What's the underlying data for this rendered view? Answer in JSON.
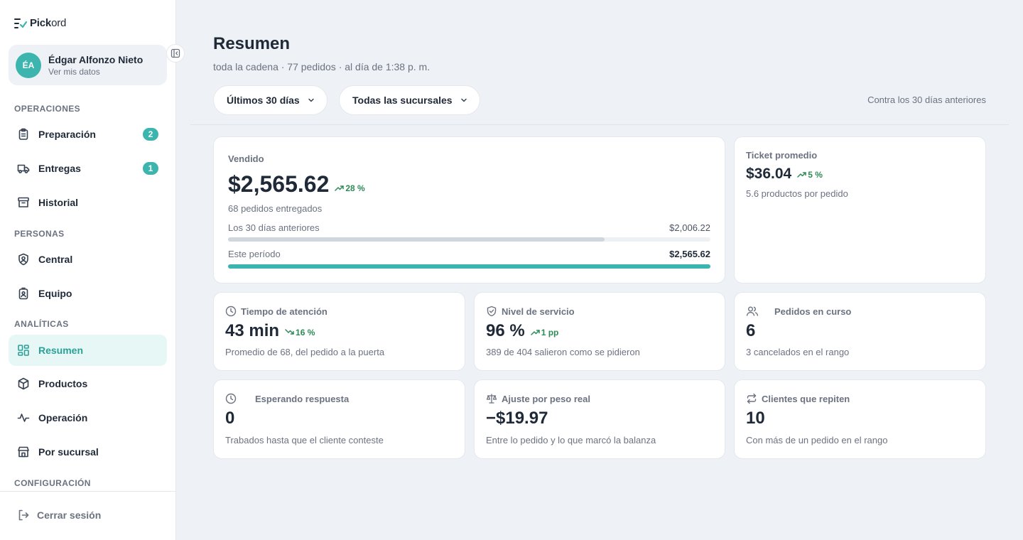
{
  "app": {
    "logo_prefix": "Pick",
    "logo_suffix": "ord"
  },
  "user": {
    "initials": "ÉA",
    "name": "Édgar Alfonzo Nieto",
    "subtitle": "Ver mis datos"
  },
  "sidebar": {
    "sections": {
      "operaciones": "OPERACIONES",
      "personas": "PERSONAS",
      "analiticas": "ANALÍTICAS",
      "configuracion": "CONFIGURACIÓN"
    },
    "items": [
      {
        "label": "Preparación",
        "badge": "2",
        "icon": "clipboard-icon"
      },
      {
        "label": "Entregas",
        "badge": "1",
        "icon": "truck-icon"
      },
      {
        "label": "Historial",
        "icon": "archive-icon"
      },
      {
        "label": "Central",
        "icon": "shield-user-icon"
      },
      {
        "label": "Equipo",
        "icon": "id-badge-icon"
      },
      {
        "label": "Resumen",
        "icon": "dashboard-icon",
        "active": true
      },
      {
        "label": "Productos",
        "icon": "package-icon"
      },
      {
        "label": "Operación",
        "icon": "activity-icon"
      },
      {
        "label": "Por sucursal",
        "icon": "store-icon"
      }
    ],
    "logout": "Cerrar sesión"
  },
  "header": {
    "title": "Resumen",
    "subtitle": "toda la cadena · 77 pedidos · al día de 1:38 p. m.",
    "filters": {
      "period": "Últimos 30 días",
      "branch": "Todas las sucursales"
    },
    "compare_note": "Contra los 30 días anteriores"
  },
  "sold": {
    "title": "Vendido",
    "value": "$2,565.62",
    "delta": "28 %",
    "note": "68 pedidos entregados",
    "previous": {
      "label": "Los 30 días anteriores",
      "value": "$2,006.22",
      "fraction": 0.78
    },
    "current": {
      "label": "Este período",
      "value": "$2,565.62",
      "fraction": 1.0
    }
  },
  "ticket": {
    "title": "Ticket promedio",
    "value": "$36.04",
    "delta": "5 %",
    "note": "5.6 productos por pedido"
  },
  "kpis": {
    "attention": {
      "title": "Tiempo de atención",
      "value": "43 min",
      "delta": "16 %",
      "note": "Promedio de 68, del pedido a la puerta"
    },
    "service": {
      "title": "Nivel de servicio",
      "value": "96 %",
      "delta": "1 pp",
      "note": "389 de 404 salieron como se pidieron"
    },
    "in_progress": {
      "title": "Pedidos en curso",
      "value": "6",
      "note": "3 cancelados en el rango"
    },
    "waiting": {
      "title": "Esperando respuesta",
      "value": "0",
      "note": "Trabados hasta que el cliente conteste"
    },
    "weight": {
      "title": "Ajuste por peso real",
      "value": "−$19.97",
      "note": "Entre lo pedido y lo que marcó la balanza"
    },
    "repeat": {
      "title": "Clientes que repiten",
      "value": "10",
      "note": "Con más de un pedido en el rango"
    }
  },
  "colors": {
    "accent": "#3bb5ad",
    "previous_bar": "#cfd6de",
    "positive": "#2e8b57"
  }
}
